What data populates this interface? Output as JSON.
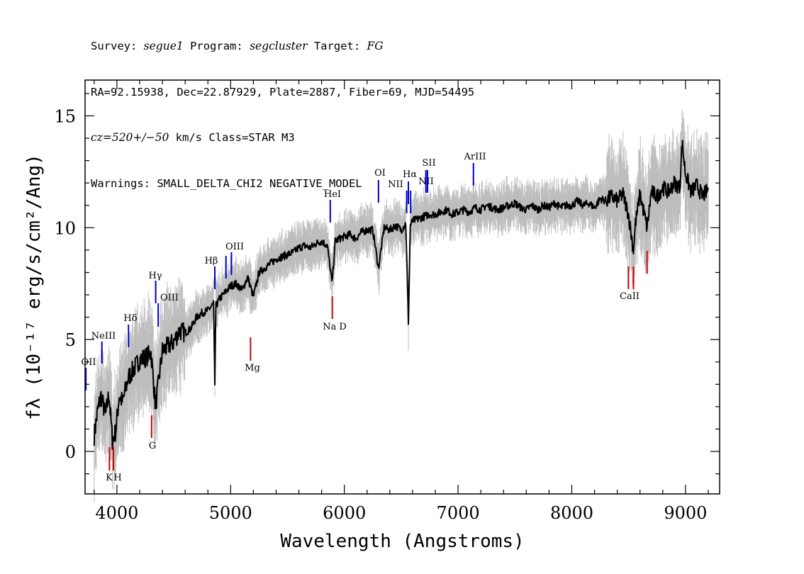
{
  "header": {
    "line1": {
      "survey_label": "Survey: ",
      "survey": "segue1",
      "program_label": " Program: ",
      "program": "segcluster",
      "target_label": " Target: ",
      "target": "FG"
    },
    "line2": "RA=92.15938, Dec=22.87929, Plate=2887, Fiber=69, MJD=54495",
    "line3": {
      "cz": "cz=520+/−50",
      "rest": " km/s Class=STAR M3"
    },
    "line4": "Warnings: SMALL_DELTA_CHI2 NEGATIVE_MODEL"
  },
  "chart_data": {
    "type": "line",
    "xlabel": "Wavelength (Angstroms)",
    "ylabel": "fλ (10⁻¹⁷ erg/s/cm²/Ang)",
    "xlim": [
      3720,
      9300
    ],
    "ylim": [
      -1.9,
      16.6
    ],
    "x_ticks": [
      4000,
      5000,
      6000,
      7000,
      8000,
      9000
    ],
    "y_ticks": [
      0,
      5,
      10,
      15
    ],
    "x_minor_step": 200,
    "y_minor_step": 1,
    "series": [
      {
        "color": "#000000",
        "x": [
          3800,
          3830,
          3860,
          3900,
          3930,
          3960,
          3990,
          4020,
          4050,
          4100,
          4150,
          4200,
          4250,
          4300,
          4340,
          4400,
          4450,
          4500,
          4550,
          4600,
          4650,
          4700,
          4750,
          4800,
          4850,
          4861,
          4870,
          4900,
          4950,
          5000,
          5050,
          5100,
          5150,
          5200,
          5250,
          5300,
          5350,
          5400,
          5450,
          5500,
          5550,
          5600,
          5650,
          5700,
          5750,
          5800,
          5850,
          5890,
          5896,
          5920,
          5950,
          6000,
          6050,
          6100,
          6150,
          6200,
          6250,
          6300,
          6350,
          6400,
          6450,
          6500,
          6540,
          6563,
          6580,
          6600,
          6650,
          6700,
          6750,
          6800,
          6850,
          6900,
          6950,
          7000,
          7050,
          7100,
          7150,
          7200,
          7250,
          7300,
          7350,
          7400,
          7450,
          7500,
          7550,
          7600,
          7650,
          7700,
          7750,
          7800,
          7850,
          7900,
          7950,
          8000,
          8050,
          8100,
          8150,
          8200,
          8250,
          8300,
          8350,
          8400,
          8450,
          8498,
          8542,
          8560,
          8600,
          8662,
          8700,
          8750,
          8800,
          8850,
          8900,
          8950,
          8970,
          9000,
          9050,
          9100,
          9150,
          9200
        ],
        "values": [
          0.7,
          1.8,
          2.5,
          1.6,
          2.6,
          0.5,
          0.9,
          2.5,
          2.2,
          3.3,
          3.7,
          4.1,
          4.2,
          4.4,
          2.0,
          4.5,
          4.7,
          4.9,
          5.4,
          5.3,
          5.5,
          6.0,
          6.2,
          6.3,
          6.6,
          3.0,
          6.5,
          6.8,
          7.1,
          7.4,
          7.5,
          7.2,
          7.8,
          6.9,
          8.0,
          8.2,
          8.4,
          8.6,
          8.7,
          8.8,
          8.9,
          9.1,
          9.2,
          9.1,
          9.3,
          9.4,
          9.2,
          7.6,
          7.8,
          9.4,
          9.5,
          9.6,
          9.7,
          9.5,
          9.8,
          9.9,
          9.9,
          8.2,
          10.0,
          9.9,
          10.1,
          9.9,
          10.2,
          5.8,
          10.1,
          10.3,
          10.4,
          10.5,
          10.6,
          10.6,
          10.7,
          10.8,
          10.6,
          10.7,
          10.8,
          10.7,
          10.9,
          10.8,
          11.0,
          10.9,
          10.8,
          10.9,
          11.0,
          11.1,
          10.9,
          10.8,
          11.0,
          10.8,
          11.0,
          10.9,
          11.1,
          10.9,
          11.0,
          11.0,
          11.2,
          11.0,
          11.1,
          10.9,
          11.3,
          11.2,
          11.4,
          11.2,
          11.5,
          10.6,
          9.0,
          10.2,
          11.5,
          10.0,
          11.6,
          11.4,
          11.8,
          11.6,
          12.0,
          11.8,
          13.8,
          12.4,
          11.6,
          11.9,
          11.4,
          11.7
        ]
      }
    ],
    "lines": [
      {
        "label": "OII",
        "wave": 3727,
        "color": "blue"
      },
      {
        "label": "NeIII",
        "wave": 3868,
        "color": "blue"
      },
      {
        "label": "K",
        "wave": 3934,
        "color": "red"
      },
      {
        "label": "H",
        "wave": 3969,
        "color": "red"
      },
      {
        "label": "Hδ",
        "wave": 4102,
        "color": "blue"
      },
      {
        "label": "G",
        "wave": 4305,
        "color": "red"
      },
      {
        "label": "Hγ",
        "wave": 4341,
        "color": "blue"
      },
      {
        "label": "OIII",
        "wave": 4363,
        "color": "blue"
      },
      {
        "label": "Hβ",
        "wave": 4861,
        "color": "blue"
      },
      {
        "label": "OIII",
        "wave": 4959,
        "color": "blue"
      },
      {
        "label": "OIII",
        "wave": 5007,
        "color": "blue"
      },
      {
        "label": "Mg",
        "wave": 5175,
        "color": "red"
      },
      {
        "label": "Na D",
        "wave": 5894,
        "color": "red"
      },
      {
        "label": "HeI",
        "wave": 5876,
        "color": "blue"
      },
      {
        "label": "OI",
        "wave": 6300,
        "color": "blue"
      },
      {
        "label": "NII",
        "wave": 6548,
        "color": "blue"
      },
      {
        "label": "Hα",
        "wave": 6563,
        "color": "blue"
      },
      {
        "label": "NII",
        "wave": 6583,
        "color": "blue"
      },
      {
        "label": "SII",
        "wave": 6717,
        "color": "blue"
      },
      {
        "label": "SII",
        "wave": 6731,
        "color": "blue"
      },
      {
        "label": "ArIII",
        "wave": 7135,
        "color": "blue"
      },
      {
        "label": "CaII",
        "wave": 8498,
        "color": "red"
      },
      {
        "label": "CaII",
        "wave": 8542,
        "color": "red"
      },
      {
        "label": "CaII",
        "wave": 8662,
        "color": "red"
      }
    ],
    "grid": false,
    "colors": {
      "flux": "#000000",
      "error_band": "#bdbdbd",
      "emission": "#0000cc",
      "absorption": "#cc0000"
    }
  }
}
